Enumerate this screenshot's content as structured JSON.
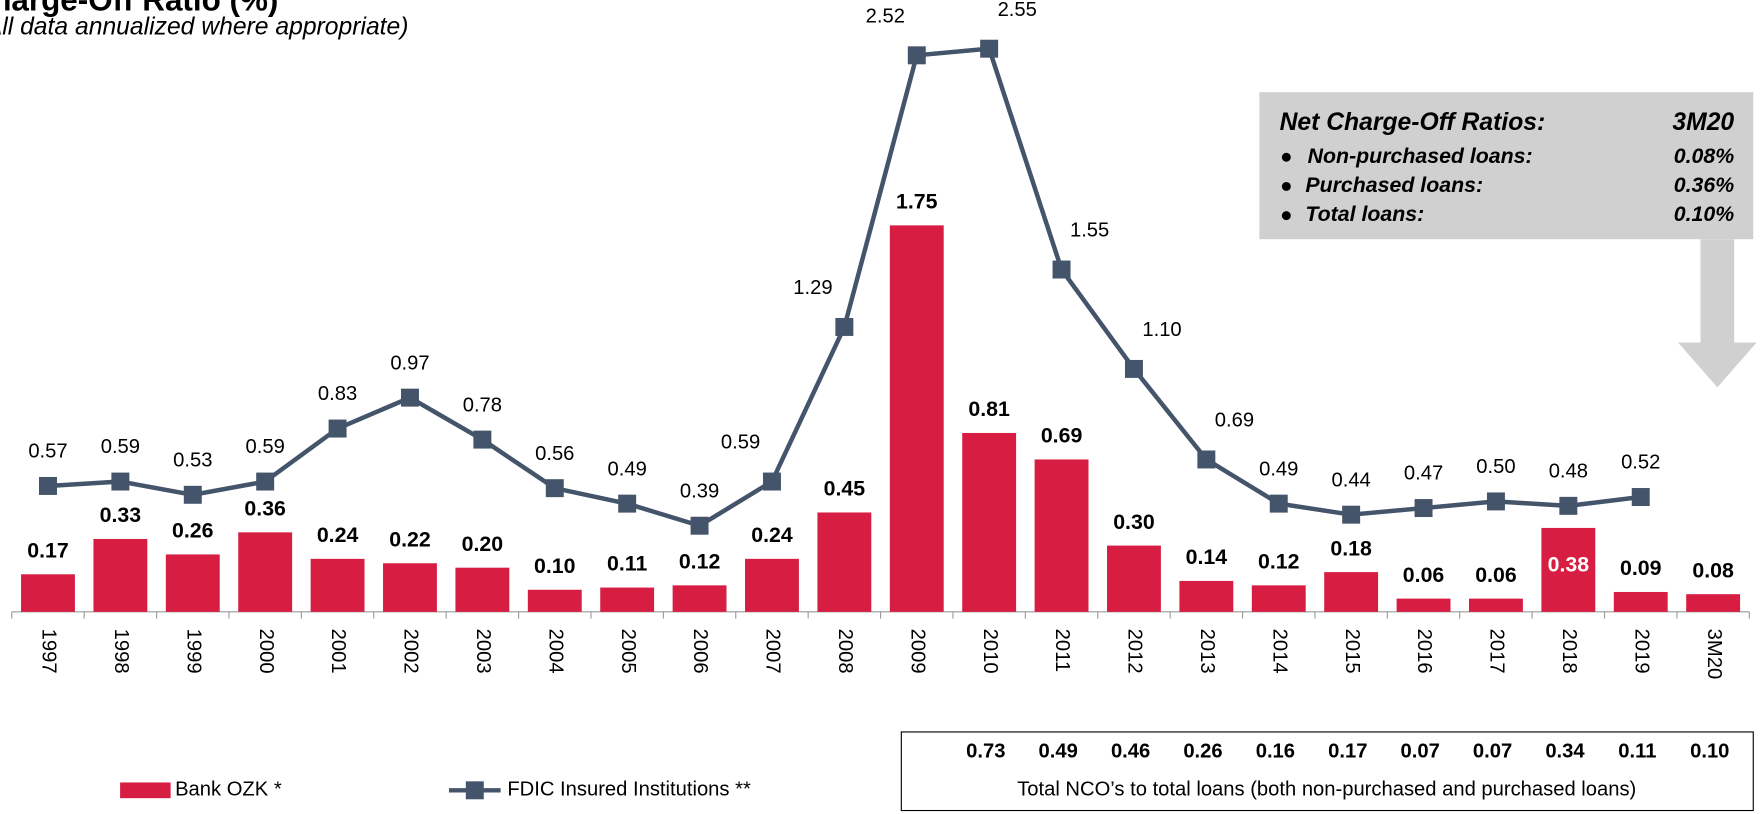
{
  "chart_data": {
    "type": "bar_line",
    "title": "Net Charge-Off Ratio (%)",
    "subtitle": "(All data annualized where appropriate)",
    "categories": [
      "1997",
      "1998",
      "1999",
      "2000",
      "2001",
      "2002",
      "2003",
      "2004",
      "2005",
      "2006",
      "2007",
      "2008",
      "2009",
      "2010",
      "2011",
      "2012",
      "2013",
      "2014",
      "2015",
      "2016",
      "2017",
      "2018",
      "2019",
      "3M20"
    ],
    "ylim": [
      0,
      2.77
    ],
    "series": [
      {
        "name": "Bank OZK *",
        "type": "bar",
        "color": "#d71e42",
        "values": [
          0.17,
          0.33,
          0.26,
          0.36,
          0.24,
          0.22,
          0.2,
          0.1,
          0.11,
          0.12,
          0.24,
          0.45,
          1.75,
          0.81,
          0.69,
          0.3,
          0.14,
          0.12,
          0.18,
          0.06,
          0.06,
          0.38,
          0.09,
          0.08
        ],
        "value_labels": [
          "0.17",
          "0.33",
          "0.26",
          "0.36",
          "0.24",
          "0.22",
          "0.20",
          "0.10",
          "0.11",
          "0.12",
          "0.24",
          "0.45",
          "1.75",
          "0.81",
          "0.69",
          "0.30",
          "0.14",
          "0.12",
          "0.18",
          "0.06",
          "0.06",
          "0.38",
          "0.09",
          "0.08"
        ]
      },
      {
        "name": "FDIC Insured Institutions **",
        "type": "line",
        "color": "#44546a",
        "values": [
          0.57,
          0.59,
          0.53,
          0.59,
          0.83,
          0.97,
          0.78,
          0.56,
          0.49,
          0.39,
          0.59,
          1.29,
          2.52,
          2.55,
          1.55,
          1.1,
          0.69,
          0.49,
          0.44,
          0.47,
          0.5,
          0.48,
          0.52,
          null
        ],
        "value_labels": [
          "0.57",
          "0.59",
          "0.53",
          "0.59",
          "0.83",
          "0.97",
          "0.78",
          "0.56",
          "0.49",
          "0.39",
          "0.59",
          "1.29",
          "2.52",
          "2.55",
          "1.55",
          "1.10",
          "0.69",
          "0.49",
          "0.44",
          "0.47",
          "0.50",
          "0.48",
          "0.52",
          null
        ]
      }
    ],
    "callout": {
      "title": "Net Charge-Off Ratios:",
      "period": "3M20",
      "rows": [
        {
          "label": "Non-purchased loans:",
          "value": "0.08%"
        },
        {
          "label": "Purchased loans:",
          "value": "0.36%"
        },
        {
          "label": "Total loans:",
          "value": "0.10%"
        }
      ]
    },
    "nco_table": {
      "start_category": "2010",
      "values": [
        0.73,
        0.49,
        0.46,
        0.26,
        0.16,
        0.17,
        0.07,
        0.07,
        0.34,
        0.11,
        0.1
      ],
      "value_labels": [
        "0.73",
        "0.49",
        "0.46",
        "0.26",
        "0.16",
        "0.17",
        "0.07",
        "0.07",
        "0.34",
        "0.11",
        "0.10"
      ],
      "caption": "Total NCO’s to total loans (both non-purchased and purchased loans)"
    }
  }
}
